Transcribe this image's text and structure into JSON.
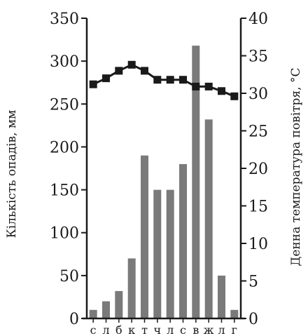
{
  "chart_data": {
    "type": "bar+line",
    "categories": [
      "с",
      "л",
      "б",
      "к",
      "т",
      "ч",
      "л",
      "с",
      "в",
      "ж",
      "л",
      "г"
    ],
    "series": [
      {
        "type": "bar",
        "axis": "left",
        "values": [
          10,
          20,
          32,
          70,
          190,
          150,
          150,
          180,
          318,
          232,
          50,
          10
        ]
      },
      {
        "type": "line",
        "axis": "right",
        "marker": "square",
        "values": [
          31.2,
          32.0,
          33.0,
          33.8,
          33.0,
          31.8,
          31.8,
          31.8,
          30.9,
          30.9,
          30.3,
          29.6
        ]
      }
    ],
    "y_left": {
      "label": "Кількість опадів, мм",
      "range": [
        0,
        350
      ],
      "ticks": [
        0,
        50,
        100,
        150,
        200,
        250,
        300,
        350
      ]
    },
    "y_right": {
      "label": "Денна температура повітря, °С",
      "range": [
        0,
        40
      ],
      "ticks": [
        0,
        5,
        10,
        15,
        20,
        25,
        30,
        35,
        40
      ]
    },
    "colors": {
      "bar": "#7a7a7a",
      "line": "#1a1a1a",
      "axis": "#1a1a1a"
    },
    "grid": false,
    "legend": "none"
  }
}
